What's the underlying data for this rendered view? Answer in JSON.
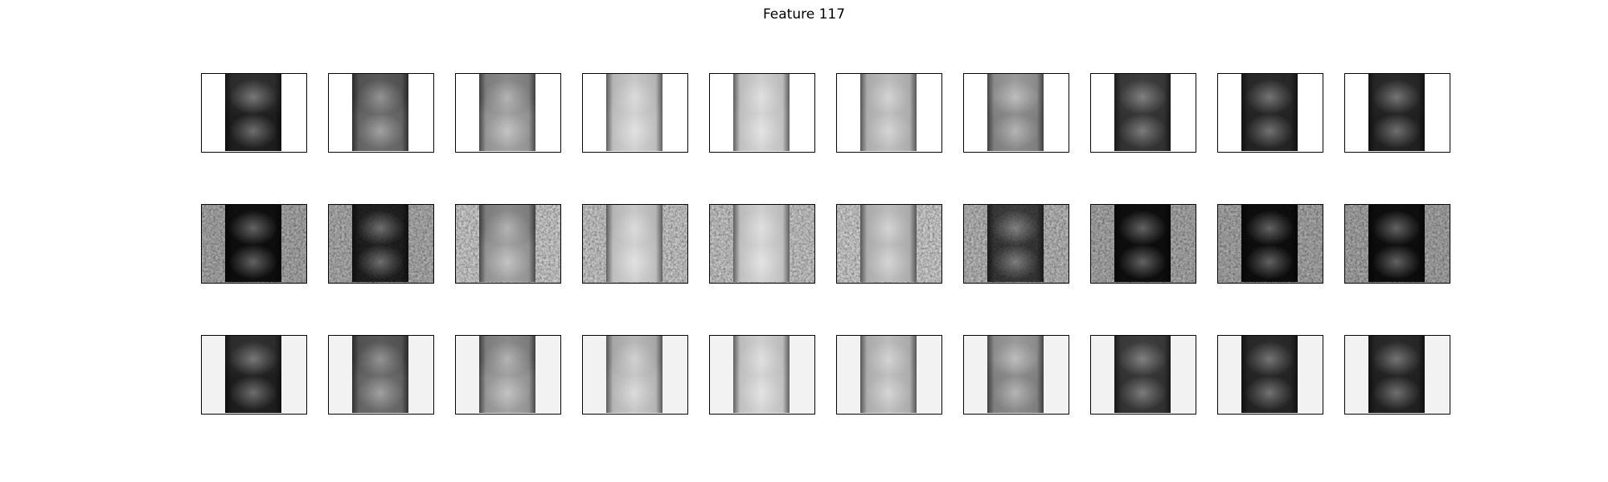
{
  "figure": {
    "title": "Feature 117"
  },
  "panels": {
    "rows": [
      {
        "row": 1,
        "background": "white",
        "frames": [
          {
            "top": "#303030",
            "bottom": "#202020"
          },
          {
            "top": "#5a5a5a",
            "bottom": "#6e6e6e"
          },
          {
            "top": "#8a8a8a",
            "bottom": "#a3a3a3"
          },
          {
            "top": "#c8c8c8",
            "bottom": "#d2d2d2"
          },
          {
            "top": "#cfcfcf",
            "bottom": "#d5d5d5"
          },
          {
            "top": "#bcbcbc",
            "bottom": "#bfbfbf"
          },
          {
            "top": "#9a9a9a",
            "bottom": "#8c8c8c"
          },
          {
            "top": "#3e3e3e",
            "bottom": "#363636"
          },
          {
            "top": "#2b2b2b",
            "bottom": "#262626"
          },
          {
            "top": "#2a2a2a",
            "bottom": "#232323"
          }
        ]
      },
      {
        "row": 2,
        "background": "noisy",
        "frames": [
          {
            "top": "#151515",
            "bottom": "#101010",
            "side": "#c9c9c9"
          },
          {
            "top": "#2a2a2a",
            "bottom": "#242424",
            "side": "#cfcfcf"
          },
          {
            "top": "#8a8a8a",
            "bottom": "#a3a3a3",
            "side": "#f2f2f2"
          },
          {
            "top": "#c8c8c8",
            "bottom": "#d2d2d2",
            "side": "#eeeeee"
          },
          {
            "top": "#cfcfcf",
            "bottom": "#d5d5d5",
            "side": "#ececec"
          },
          {
            "top": "#bcbcbc",
            "bottom": "#bfbfbf",
            "side": "#f4f4f4"
          },
          {
            "top": "#4a4a4a",
            "bottom": "#3a3a3a",
            "side": "#dadada"
          },
          {
            "top": "#141414",
            "bottom": "#101010",
            "side": "#cacaca"
          },
          {
            "top": "#121212",
            "bottom": "#0e0e0e",
            "side": "#c8c8c8"
          },
          {
            "top": "#141414",
            "bottom": "#0f0f0f",
            "side": "#c6c6c6"
          }
        ]
      },
      {
        "row": 3,
        "background": "light",
        "frames": [
          {
            "top": "#303030",
            "bottom": "#202020",
            "side": "#f2f2f2"
          },
          {
            "top": "#5a5a5a",
            "bottom": "#6e6e6e",
            "side": "#f2f2f2"
          },
          {
            "top": "#8a8a8a",
            "bottom": "#a3a3a3",
            "side": "#f2f2f2"
          },
          {
            "top": "#b8b8b8",
            "bottom": "#c8c8c8",
            "side": "#f2f2f2"
          },
          {
            "top": "#cfcfcf",
            "bottom": "#d5d5d5",
            "side": "#f2f2f2"
          },
          {
            "top": "#bcbcbc",
            "bottom": "#bfbfbf",
            "side": "#f2f2f2"
          },
          {
            "top": "#9a9a9a",
            "bottom": "#8c8c8c",
            "side": "#f2f2f2"
          },
          {
            "top": "#3e3e3e",
            "bottom": "#363636",
            "side": "#f2f2f2"
          },
          {
            "top": "#2b2b2b",
            "bottom": "#262626",
            "side": "#f2f2f2"
          },
          {
            "top": "#2a2a2a",
            "bottom": "#232323",
            "side": "#f2f2f2"
          }
        ]
      }
    ]
  }
}
